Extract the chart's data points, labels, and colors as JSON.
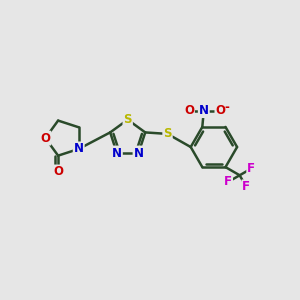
{
  "bg_color": "#e6e6e6",
  "bond_color": "#2a4a2a",
  "atom_colors": {
    "S": "#b8b800",
    "N": "#0000cc",
    "O": "#cc0000",
    "F": "#cc00cc",
    "C": "#2a4a2a"
  },
  "bond_width": 1.8,
  "font_size": 8.5,
  "font_size_small": 7.0
}
